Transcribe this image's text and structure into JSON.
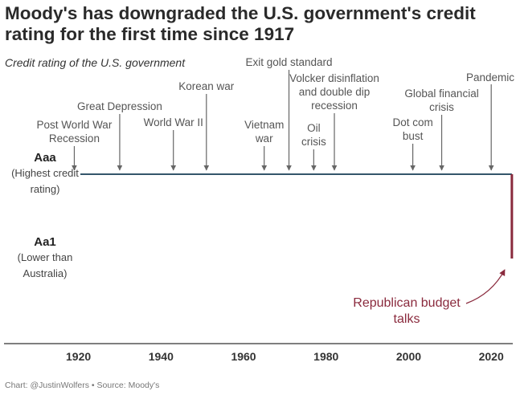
{
  "title": "Moody's has downgraded the U.S. government's credit rating for the first time since 1917",
  "subtitle": "Credit rating of the U.S. government",
  "credit": "Chart: @JustinWolfers • Source: Moody's",
  "chart_data": {
    "type": "line",
    "xlim": [
      1901,
      2026
    ],
    "x_ticks": [
      1920,
      1940,
      1960,
      1980,
      2000,
      2020
    ],
    "y_levels": [
      {
        "rating": "Aaa",
        "note": [
          "(Highest credit",
          "rating)"
        ]
      },
      {
        "rating": "Aa1",
        "note": [
          "(Lower than",
          "Australia)"
        ]
      }
    ],
    "series": [
      {
        "points": [
          {
            "x": 1917,
            "y": "Aaa"
          },
          {
            "x": 2025,
            "y": "Aaa"
          }
        ],
        "color": "#34566b"
      },
      {
        "points": [
          {
            "x": 2025,
            "y": "Aaa"
          },
          {
            "x": 2025,
            "y": "Aa1"
          }
        ],
        "color": "#8a2a3d"
      }
    ],
    "events": [
      {
        "year": 1919,
        "lines": [
          "Post World War",
          "Recession"
        ]
      },
      {
        "year": 1930,
        "lines": [
          "Great Depression"
        ]
      },
      {
        "year": 1943,
        "lines": [
          "World War II"
        ]
      },
      {
        "year": 1951,
        "lines": [
          "Korean war"
        ]
      },
      {
        "year": 1965,
        "lines": [
          "Vietnam",
          "war"
        ]
      },
      {
        "year": 1971,
        "lines": [
          "Exit gold standard"
        ]
      },
      {
        "year": 1977,
        "lines": [
          "Oil",
          "crisis"
        ]
      },
      {
        "year": 1982,
        "lines": [
          "Volcker disinflation",
          "and double dip",
          "recession"
        ]
      },
      {
        "year": 2001,
        "lines": [
          "Dot com",
          "bust"
        ]
      },
      {
        "year": 2008,
        "lines": [
          "Global financial",
          "crisis"
        ]
      },
      {
        "year": 2020,
        "lines": [
          "Pandemic"
        ]
      }
    ],
    "annotation": {
      "lines": [
        "Republican budget",
        "talks"
      ],
      "year": 2025
    },
    "grid": false
  }
}
